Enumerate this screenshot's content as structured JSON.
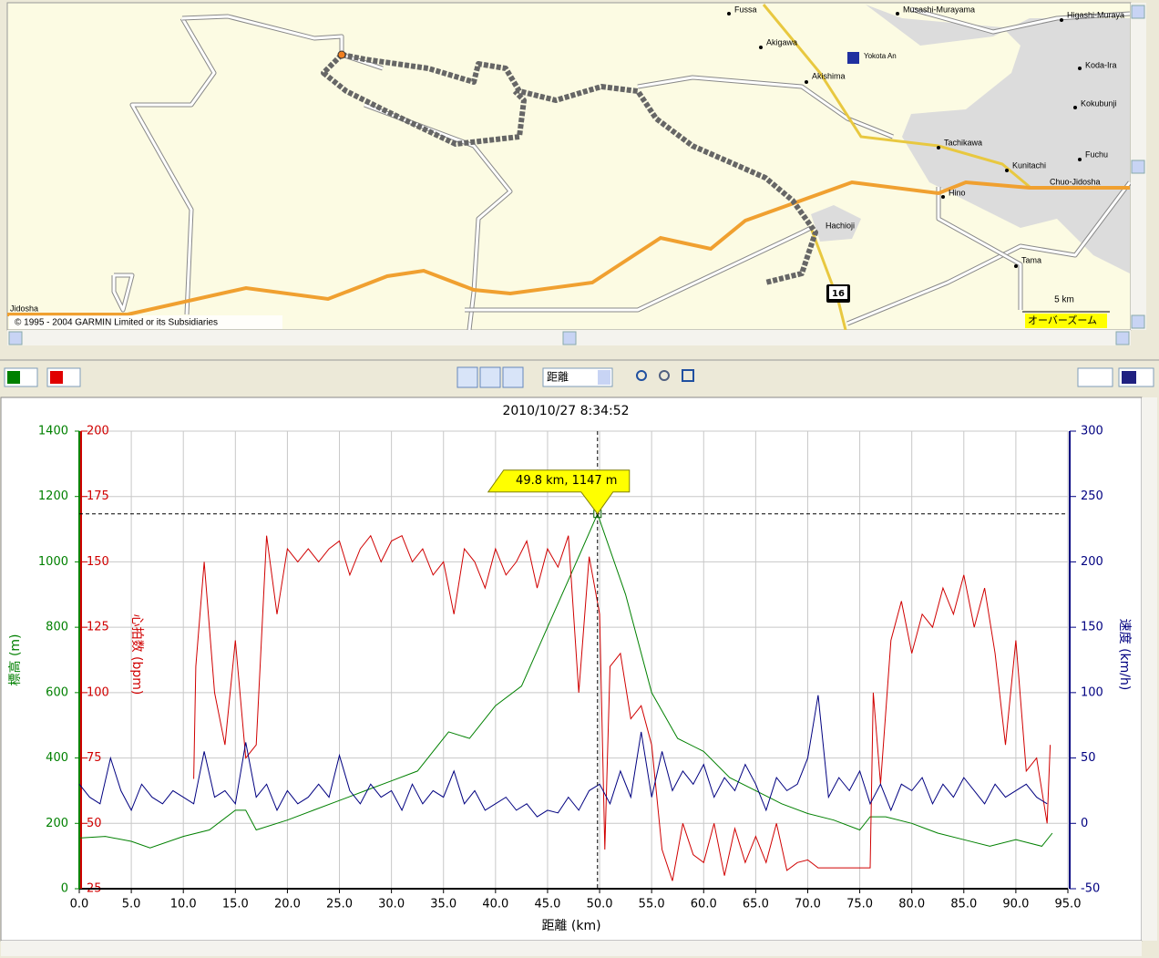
{
  "map": {
    "labels": [
      "Fussa",
      "Akigawa",
      "Akishima",
      "Yokota An",
      "Musashi-Murayama",
      "Higashi-Muraya",
      "Koda-Ira",
      "Kokubunji",
      "Tachikawa",
      "Kunitachi",
      "Fuchu",
      "Chuo-Jidosha",
      "Hino",
      "Hachioji",
      "Tama",
      "Jidosha"
    ],
    "route_shield": "16",
    "scale": "5 km",
    "overzoom": "オーバーズーム",
    "copyright": "© 1995 - 2004 GARMIN Limited or its Subsidiaries"
  },
  "toolbar": {
    "x_axis_select": "距離"
  },
  "chart_data": {
    "type": "line",
    "title": "2010/10/27 8:34:52",
    "x_label": "距離 (km)",
    "xlim": [
      0,
      95
    ],
    "xticks": [
      {
        "value": 0,
        "label": "0.0"
      },
      {
        "value": 5,
        "label": "5.0"
      },
      {
        "value": 10,
        "label": "10.0"
      },
      {
        "value": 15,
        "label": "15.0"
      },
      {
        "value": 20,
        "label": "20.0"
      },
      {
        "value": 25,
        "label": "25.0"
      },
      {
        "value": 30,
        "label": "30.0"
      },
      {
        "value": 35,
        "label": "35.0"
      },
      {
        "value": 40,
        "label": "40.0"
      },
      {
        "value": 45,
        "label": "45.0"
      },
      {
        "value": 50,
        "label": "50.0"
      },
      {
        "value": 55,
        "label": "55.0"
      },
      {
        "value": 60,
        "label": "60.0"
      },
      {
        "value": 65,
        "label": "65.0"
      },
      {
        "value": 70,
        "label": "70.0"
      },
      {
        "value": 75,
        "label": "75.0"
      },
      {
        "value": 80,
        "label": "80.0"
      },
      {
        "value": 85,
        "label": "85.0"
      },
      {
        "value": 90,
        "label": "90.0"
      },
      {
        "value": 95,
        "label": "95.0"
      }
    ],
    "y_label": "標高 (m)",
    "y_color": "#008000",
    "ylim": [
      0,
      1400
    ],
    "yticks": [
      0,
      200,
      400,
      600,
      800,
      1000,
      1200,
      1400
    ],
    "y2_label": "心拍数 (bpm)",
    "y2_color": "#d00000",
    "y2lim": [
      25,
      200
    ],
    "y2ticks": [
      25,
      50,
      75,
      100,
      125,
      150,
      175,
      200
    ],
    "y3_label": "速度 (km/h)",
    "y3_color": "#000080",
    "y3lim": [
      -50,
      300
    ],
    "y3ticks": [
      -50,
      0,
      50,
      100,
      150,
      200,
      250,
      300
    ],
    "grid": true,
    "series": [
      {
        "color": "#008000",
        "axis": "y",
        "x": [
          0,
          2.5,
          5,
          6.8,
          10,
          12.5,
          15,
          16,
          17,
          20,
          22.5,
          25,
          27.5,
          30,
          32.5,
          35,
          35.5,
          37.5,
          40,
          42.5,
          45,
          47.5,
          49.8,
          52.5,
          55,
          57.5,
          60,
          62.5,
          65,
          67.5,
          70,
          72.5,
          75,
          76,
          77.5,
          80,
          82.5,
          85,
          87.5,
          90,
          92.5,
          93.5
        ],
        "values": [
          155,
          160,
          145,
          125,
          160,
          180,
          240,
          240,
          180,
          210,
          240,
          270,
          300,
          330,
          360,
          460,
          480,
          460,
          560,
          620,
          800,
          980,
          1147,
          900,
          600,
          460,
          420,
          340,
          300,
          260,
          230,
          210,
          180,
          220,
          220,
          200,
          170,
          150,
          130,
          150,
          130,
          170
        ]
      },
      {
        "color": "#d00000",
        "axis": "y2",
        "x": [
          11,
          11.2,
          12,
          13,
          14,
          15,
          16,
          17,
          18,
          19,
          20,
          21,
          22,
          23,
          24,
          25,
          26,
          27,
          28,
          29,
          30,
          31,
          32,
          33,
          34,
          35,
          36,
          37,
          38,
          39,
          40,
          41,
          42,
          43,
          44,
          45,
          46,
          47,
          48,
          49,
          50,
          50.5,
          51,
          52,
          53,
          54,
          55,
          56,
          57,
          58,
          59,
          60,
          61,
          62,
          63,
          64,
          65,
          66,
          67,
          68,
          69,
          70,
          71,
          72,
          73,
          74,
          75,
          76,
          76.3,
          77,
          78,
          79,
          80,
          81,
          82,
          83,
          84,
          85,
          86,
          87,
          88,
          89,
          90,
          91,
          92,
          93,
          93.3
        ],
        "values": [
          67,
          110,
          150,
          100,
          80,
          120,
          75,
          80,
          160,
          130,
          155,
          150,
          155,
          150,
          155,
          158,
          145,
          155,
          160,
          150,
          158,
          160,
          150,
          155,
          145,
          150,
          130,
          155,
          150,
          140,
          155,
          145,
          150,
          158,
          140,
          155,
          148,
          160,
          100,
          152,
          130,
          40,
          110,
          115,
          90,
          95,
          80,
          40,
          28,
          50,
          38,
          35,
          50,
          30,
          48,
          35,
          45,
          35,
          50,
          32,
          35,
          36,
          33,
          33,
          33,
          33,
          33,
          33,
          100,
          65,
          120,
          135,
          115,
          130,
          125,
          140,
          130,
          145,
          125,
          140,
          115,
          80,
          120,
          70,
          75,
          50,
          80
        ]
      },
      {
        "color": "#000080",
        "axis": "y3",
        "x": [
          0,
          1,
          2,
          3,
          4,
          5,
          6,
          7,
          8,
          9,
          10,
          11,
          12,
          13,
          14,
          15,
          16,
          17,
          18,
          19,
          20,
          21,
          22,
          23,
          24,
          25,
          26,
          27,
          28,
          29,
          30,
          31,
          32,
          33,
          34,
          35,
          36,
          37,
          38,
          39,
          40,
          41,
          42,
          43,
          44,
          45,
          46,
          47,
          48,
          49,
          50,
          51,
          52,
          53,
          54,
          55,
          56,
          57,
          58,
          59,
          60,
          61,
          62,
          63,
          64,
          65,
          66,
          67,
          68,
          69,
          70,
          71,
          72,
          73,
          74,
          75,
          76,
          77,
          78,
          79,
          80,
          81,
          82,
          83,
          84,
          85,
          86,
          87,
          88,
          89,
          90,
          91,
          92,
          93
        ],
        "values": [
          30,
          20,
          15,
          50,
          25,
          10,
          30,
          20,
          15,
          25,
          20,
          15,
          55,
          20,
          25,
          15,
          62,
          20,
          30,
          10,
          25,
          15,
          20,
          30,
          20,
          52,
          25,
          15,
          30,
          20,
          25,
          10,
          30,
          15,
          25,
          20,
          40,
          15,
          25,
          10,
          15,
          20,
          10,
          15,
          5,
          10,
          8,
          20,
          10,
          25,
          30,
          15,
          40,
          20,
          70,
          20,
          55,
          25,
          40,
          30,
          45,
          20,
          35,
          25,
          45,
          30,
          10,
          35,
          25,
          30,
          50,
          98,
          20,
          35,
          25,
          40,
          15,
          30,
          10,
          30,
          25,
          35,
          15,
          30,
          20,
          35,
          25,
          15,
          30,
          20,
          25,
          30,
          20,
          15
        ]
      }
    ],
    "cursor": {
      "x": 49.8,
      "y": 1147,
      "label": "49.8 km, 1147 m"
    }
  }
}
